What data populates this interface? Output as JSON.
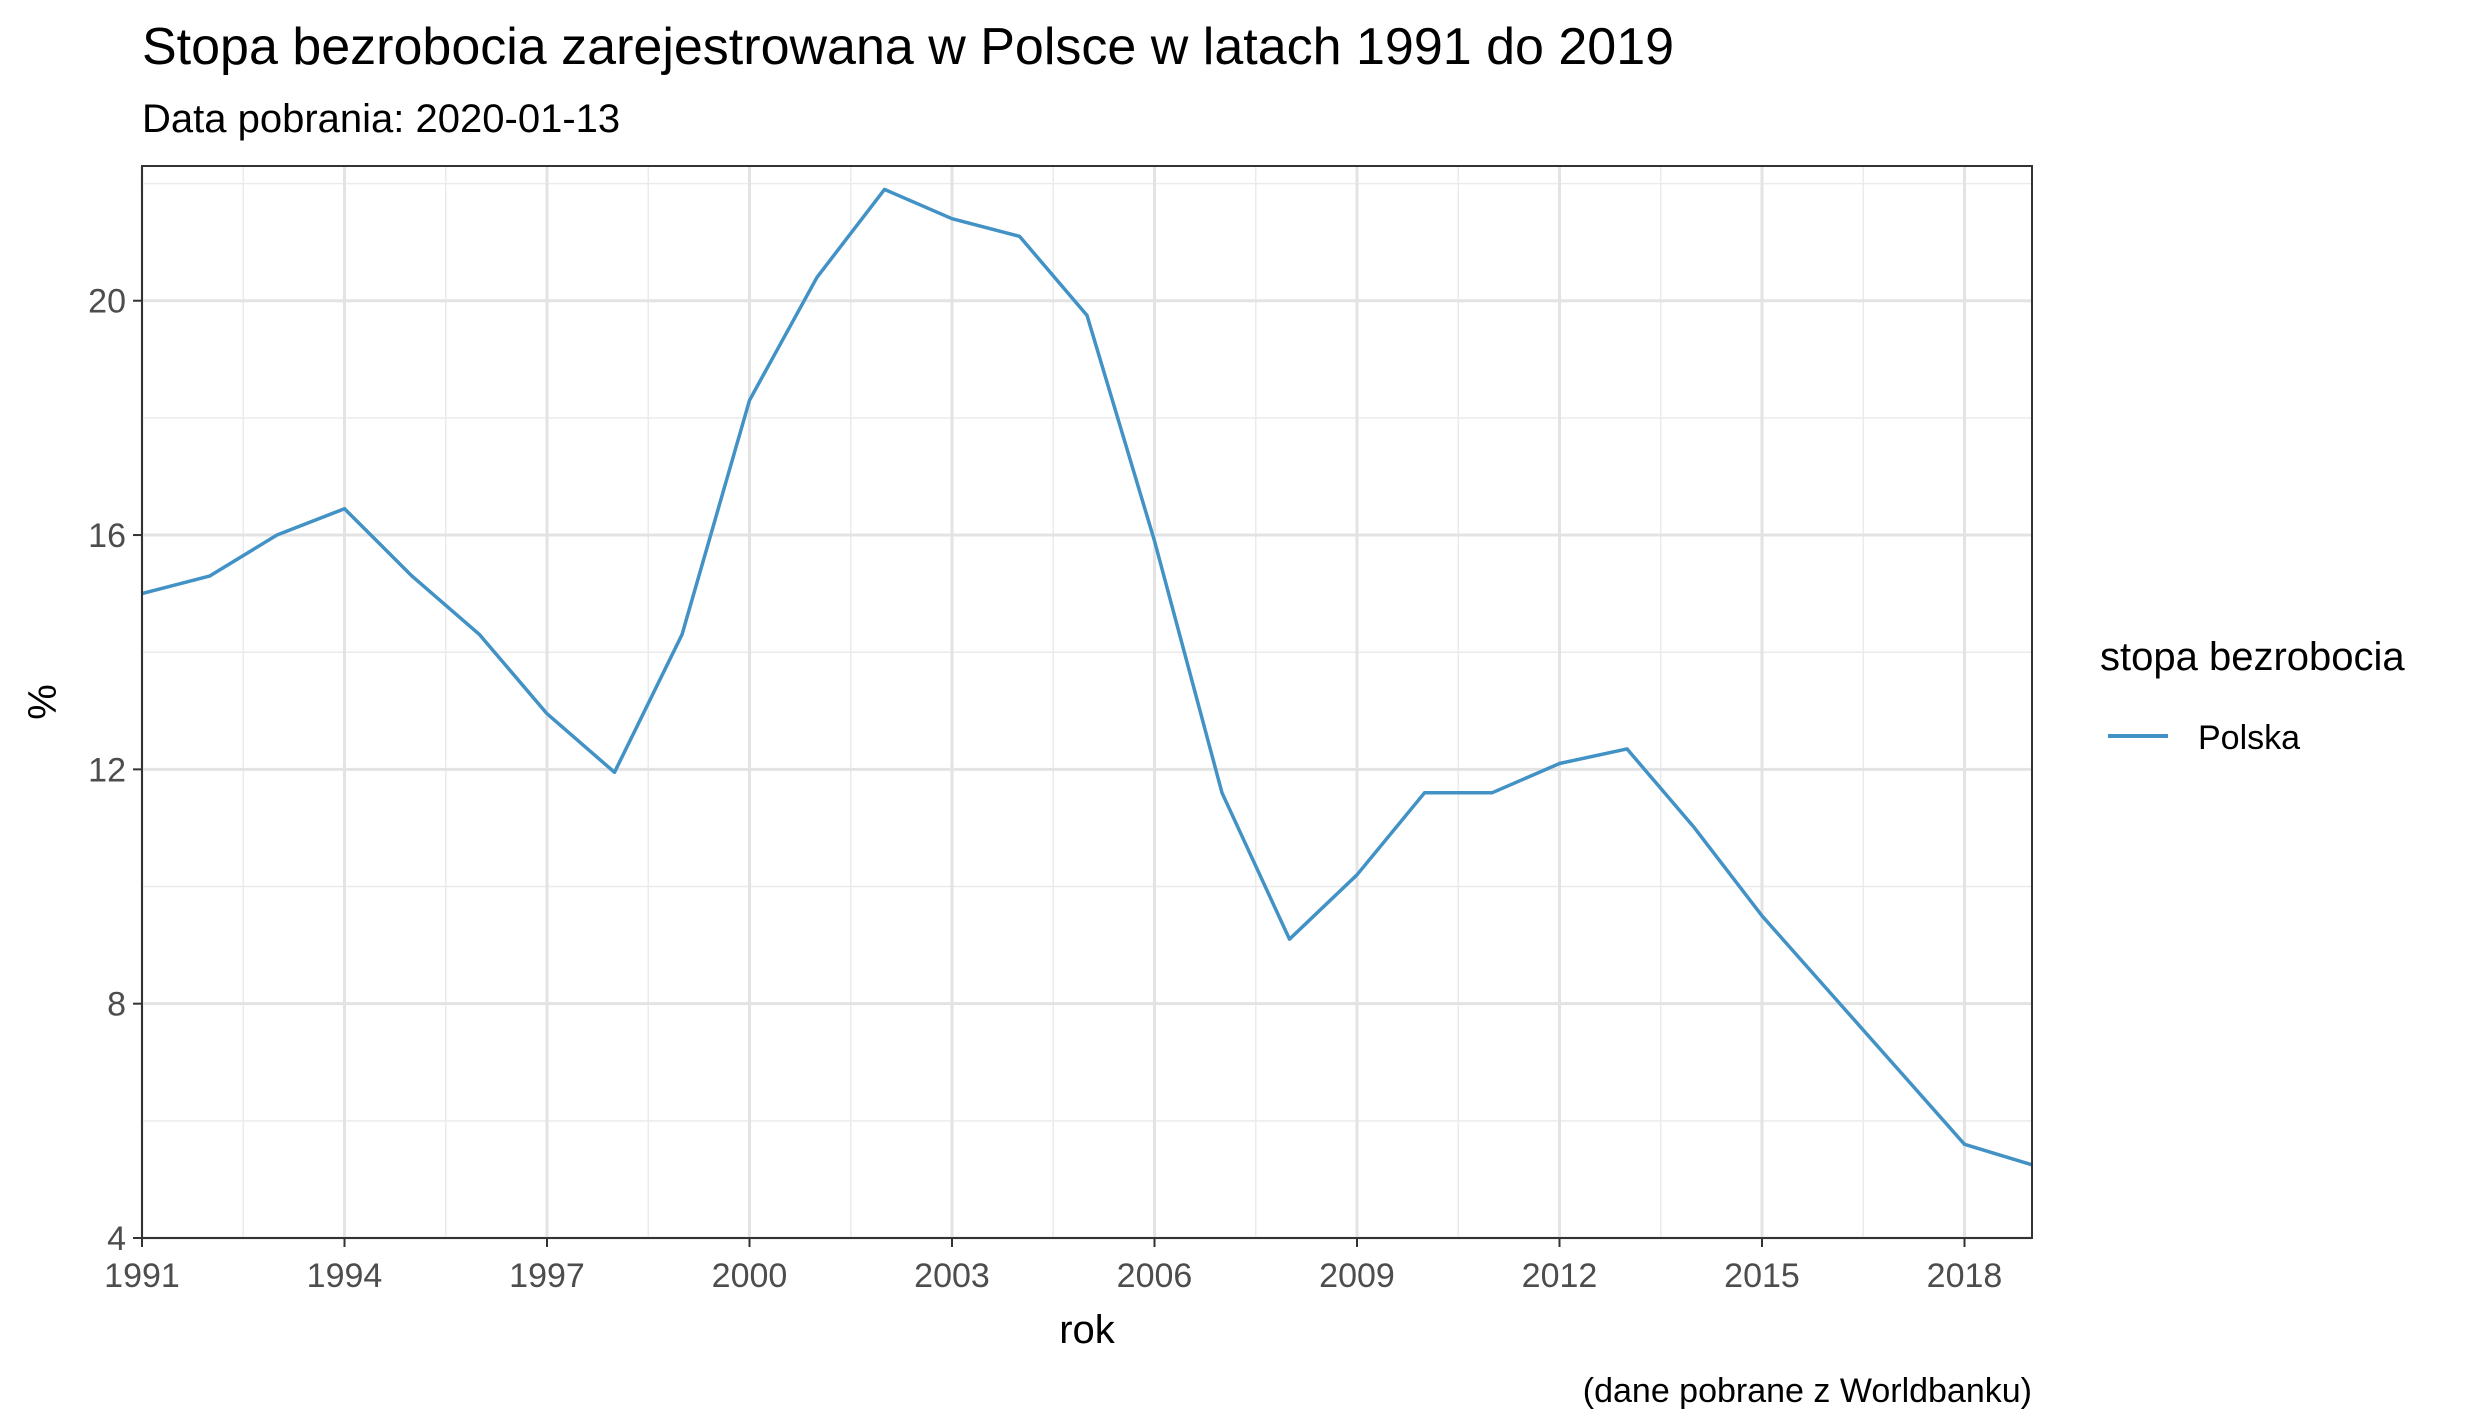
{
  "chart_data": {
    "type": "line",
    "title": "Stopa bezrobocia zarejestrowana w Polsce w latach 1991 do 2019",
    "subtitle": "Data pobrania: 2020-01-13",
    "xlabel": "rok",
    "ylabel": "%",
    "caption": "(dane pobrane z Worldbanku)",
    "xlim": [
      1991,
      2019
    ],
    "ylim": [
      4,
      22.3
    ],
    "x_ticks": [
      1991,
      1994,
      1997,
      2000,
      2003,
      2006,
      2009,
      2012,
      2015,
      2018
    ],
    "y_ticks": [
      4,
      8,
      12,
      16,
      20
    ],
    "grid": true,
    "legend": {
      "title": "stopa bezrobocia",
      "position": "right"
    },
    "x": [
      1991,
      1992,
      1993,
      1994,
      1995,
      1996,
      1997,
      1998,
      1999,
      2000,
      2001,
      2002,
      2003,
      2004,
      2005,
      2006,
      2007,
      2008,
      2009,
      2010,
      2011,
      2012,
      2013,
      2014,
      2015,
      2016,
      2017,
      2018,
      2019
    ],
    "series": [
      {
        "name": "Polska",
        "color": "#4292c6",
        "values": [
          15.0,
          15.3,
          16.0,
          16.45,
          15.3,
          14.3,
          12.95,
          11.95,
          14.3,
          18.3,
          20.4,
          21.9,
          21.4,
          21.1,
          19.75,
          15.9,
          11.6,
          9.1,
          10.2,
          11.6,
          11.6,
          12.1,
          12.35,
          11.0,
          9.5,
          8.2,
          6.9,
          5.6,
          5.25
        ]
      }
    ]
  }
}
